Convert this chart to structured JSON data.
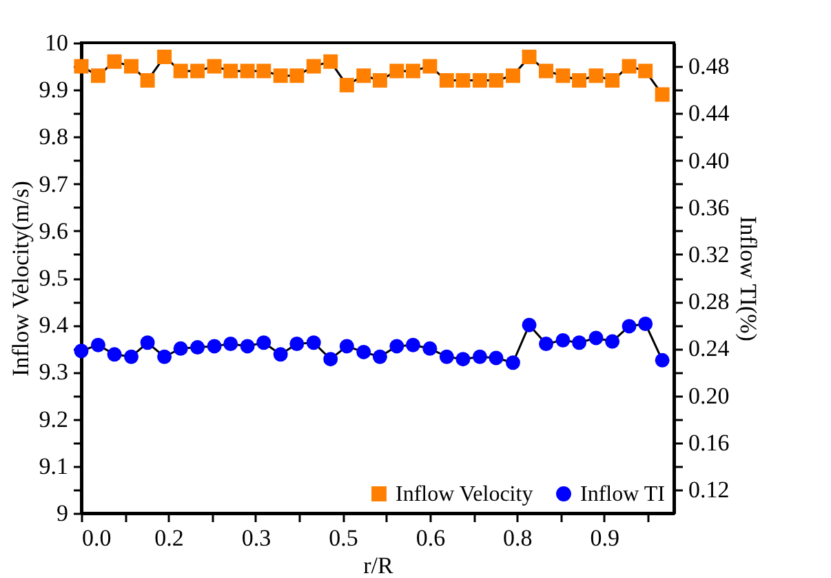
{
  "chart_data": {
    "type": "line",
    "xlabel": "r/R",
    "ylabel": "Inflow Velocity(m/s)",
    "y2label": "Inflow TI(%)",
    "x": [
      0,
      0.029,
      0.057,
      0.086,
      0.114,
      0.143,
      0.171,
      0.2,
      0.229,
      0.257,
      0.286,
      0.314,
      0.343,
      0.371,
      0.4,
      0.429,
      0.457,
      0.486,
      0.514,
      0.543,
      0.571,
      0.6,
      0.629,
      0.657,
      0.686,
      0.714,
      0.743,
      0.771,
      0.8,
      0.829,
      0.857,
      0.886,
      0.914,
      0.943,
      0.971,
      1.0
    ],
    "series": [
      {
        "name": "Inflow Velocity",
        "color": "#ff7f00",
        "marker": "square",
        "values": [
          9.95,
          9.93,
          9.96,
          9.95,
          9.92,
          9.97,
          9.94,
          9.94,
          9.95,
          9.94,
          9.94,
          9.94,
          9.93,
          9.93,
          9.95,
          9.96,
          9.91,
          9.93,
          9.92,
          9.94,
          9.94,
          9.95,
          9.92,
          9.92,
          9.92,
          9.92,
          9.93,
          9.97,
          9.94,
          9.93,
          9.92,
          9.93,
          9.92,
          9.95,
          9.94,
          9.89
        ]
      },
      {
        "name": "Inflow TI",
        "color": "#0000ff",
        "marker": "circle",
        "axis": "y2",
        "values": [
          0.238,
          0.243,
          0.235,
          0.233,
          0.245,
          0.233,
          0.24,
          0.241,
          0.242,
          0.244,
          0.242,
          0.245,
          0.235,
          0.244,
          0.245,
          0.231,
          0.242,
          0.237,
          0.233,
          0.242,
          0.243,
          0.24,
          0.233,
          0.231,
          0.233,
          0.232,
          0.228,
          0.26,
          0.244,
          0.247,
          0.245,
          0.249,
          0.246,
          0.259,
          0.261,
          0.23
        ]
      }
    ],
    "xlim": [
      0,
      1.02
    ],
    "xticks": [
      {
        "value": 0,
        "label": "0.0"
      },
      {
        "value": 0.075,
        "label": null
      },
      {
        "value": 0.15,
        "label": "0.2"
      },
      {
        "value": 0.225,
        "label": null
      },
      {
        "value": 0.3,
        "label": "0.3"
      },
      {
        "value": 0.375,
        "label": null
      },
      {
        "value": 0.45,
        "label": "0.5"
      },
      {
        "value": 0.525,
        "label": null
      },
      {
        "value": 0.6,
        "label": "0.6"
      },
      {
        "value": 0.675,
        "label": null
      },
      {
        "value": 0.75,
        "label": "0.8"
      },
      {
        "value": 0.825,
        "label": null
      },
      {
        "value": 0.9,
        "label": "0.9"
      },
      {
        "value": 0.975,
        "label": null
      }
    ],
    "ylim": [
      9,
      10
    ],
    "yticks": [
      9,
      {
        "value": 9.05,
        "label": null
      },
      9.1,
      {
        "value": 9.15,
        "label": null
      },
      9.2,
      {
        "value": 9.25,
        "label": null
      },
      9.3,
      {
        "value": 9.35,
        "label": null
      },
      9.4,
      {
        "value": 9.45,
        "label": null
      },
      9.5,
      {
        "value": 9.55,
        "label": null
      },
      9.6,
      {
        "value": 9.65,
        "label": null
      },
      9.7,
      {
        "value": 9.75,
        "label": null
      },
      9.8,
      {
        "value": 9.85,
        "label": null
      },
      9.9,
      {
        "value": 9.95,
        "label": null
      },
      10
    ],
    "y2lim": [
      0.1,
      0.5
    ],
    "y2ticks": [
      0.12,
      {
        "value": 0.14,
        "label": null
      },
      0.16,
      {
        "value": 0.18,
        "label": null
      },
      {
        "value": 0.2,
        "label": "0.20"
      },
      {
        "value": 0.22,
        "label": null
      },
      0.24,
      {
        "value": 0.26,
        "label": null
      },
      0.28,
      {
        "value": 0.3,
        "label": null
      },
      0.32,
      {
        "value": 0.34,
        "label": null
      },
      0.36,
      {
        "value": 0.38,
        "label": null
      },
      {
        "value": 0.4,
        "label": "0.40"
      },
      {
        "value": 0.42,
        "label": null
      },
      0.44,
      {
        "value": 0.46,
        "label": null
      },
      0.48
    ],
    "legend": "bottom right"
  }
}
